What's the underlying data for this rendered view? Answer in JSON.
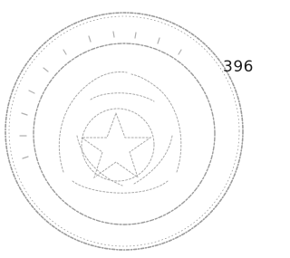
{
  "page_number": "396"
}
